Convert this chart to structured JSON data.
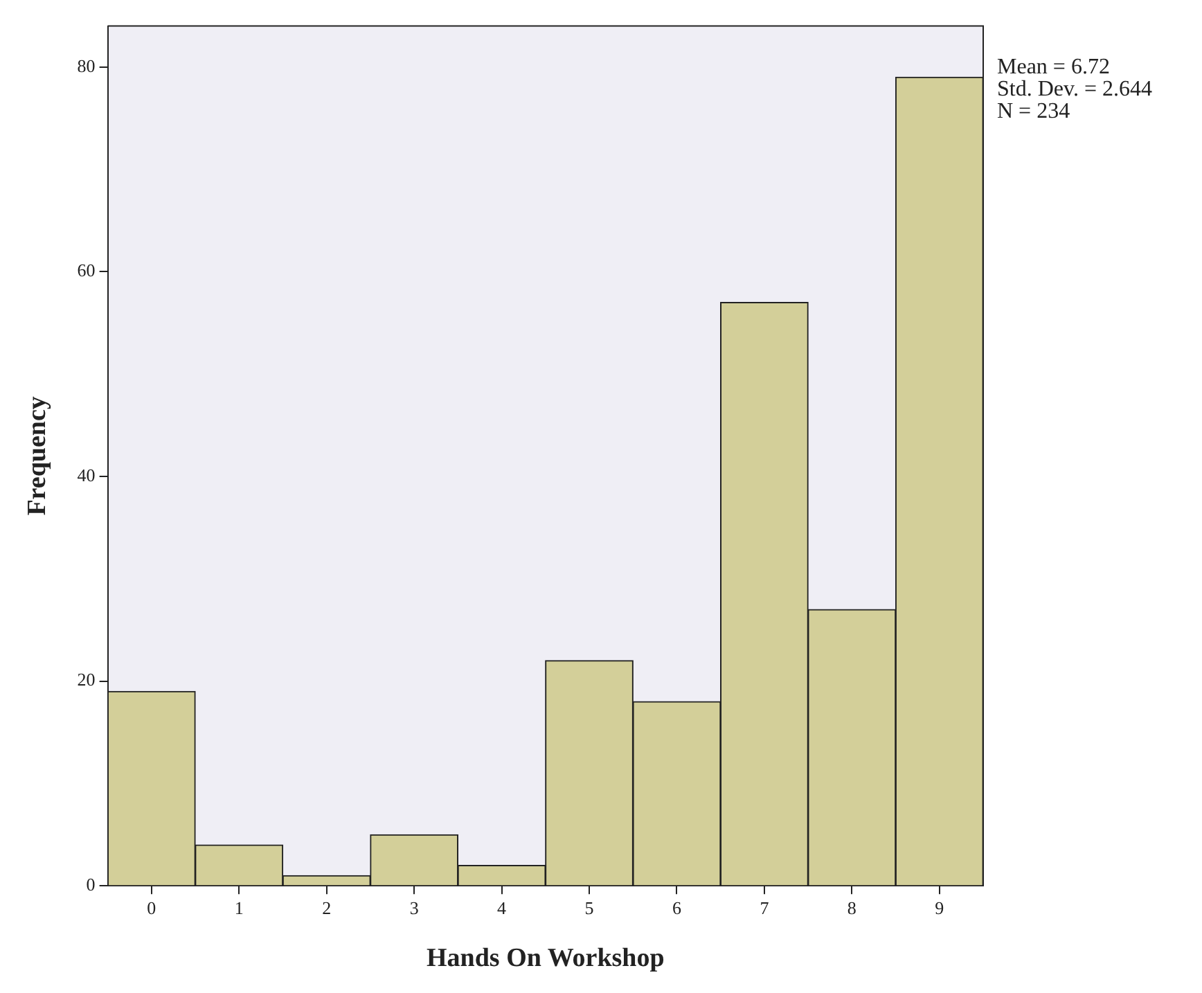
{
  "chart_data": {
    "type": "histogram",
    "xlabel": "Hands On Workshop",
    "ylabel": "Frequency",
    "bins": [
      -0.5,
      0.5,
      1.5,
      2.5,
      3.5,
      4.5,
      5.5,
      6.5,
      7.5,
      8.5,
      9.5
    ],
    "values": [
      19,
      4,
      1,
      5,
      2,
      22,
      18,
      57,
      27,
      79
    ],
    "color": "#d3cf99",
    "xlim": [
      -0.5,
      9.5
    ],
    "xticks": [
      0,
      1,
      2,
      3,
      4,
      5,
      6,
      7,
      8,
      9
    ],
    "ylim": [
      0,
      84
    ],
    "yticks": [
      0,
      20,
      40,
      60,
      80
    ],
    "legend": false,
    "annotations": [
      "Mean = 6.72",
      "Std. Dev. = 2.644",
      "N = 234"
    ]
  }
}
